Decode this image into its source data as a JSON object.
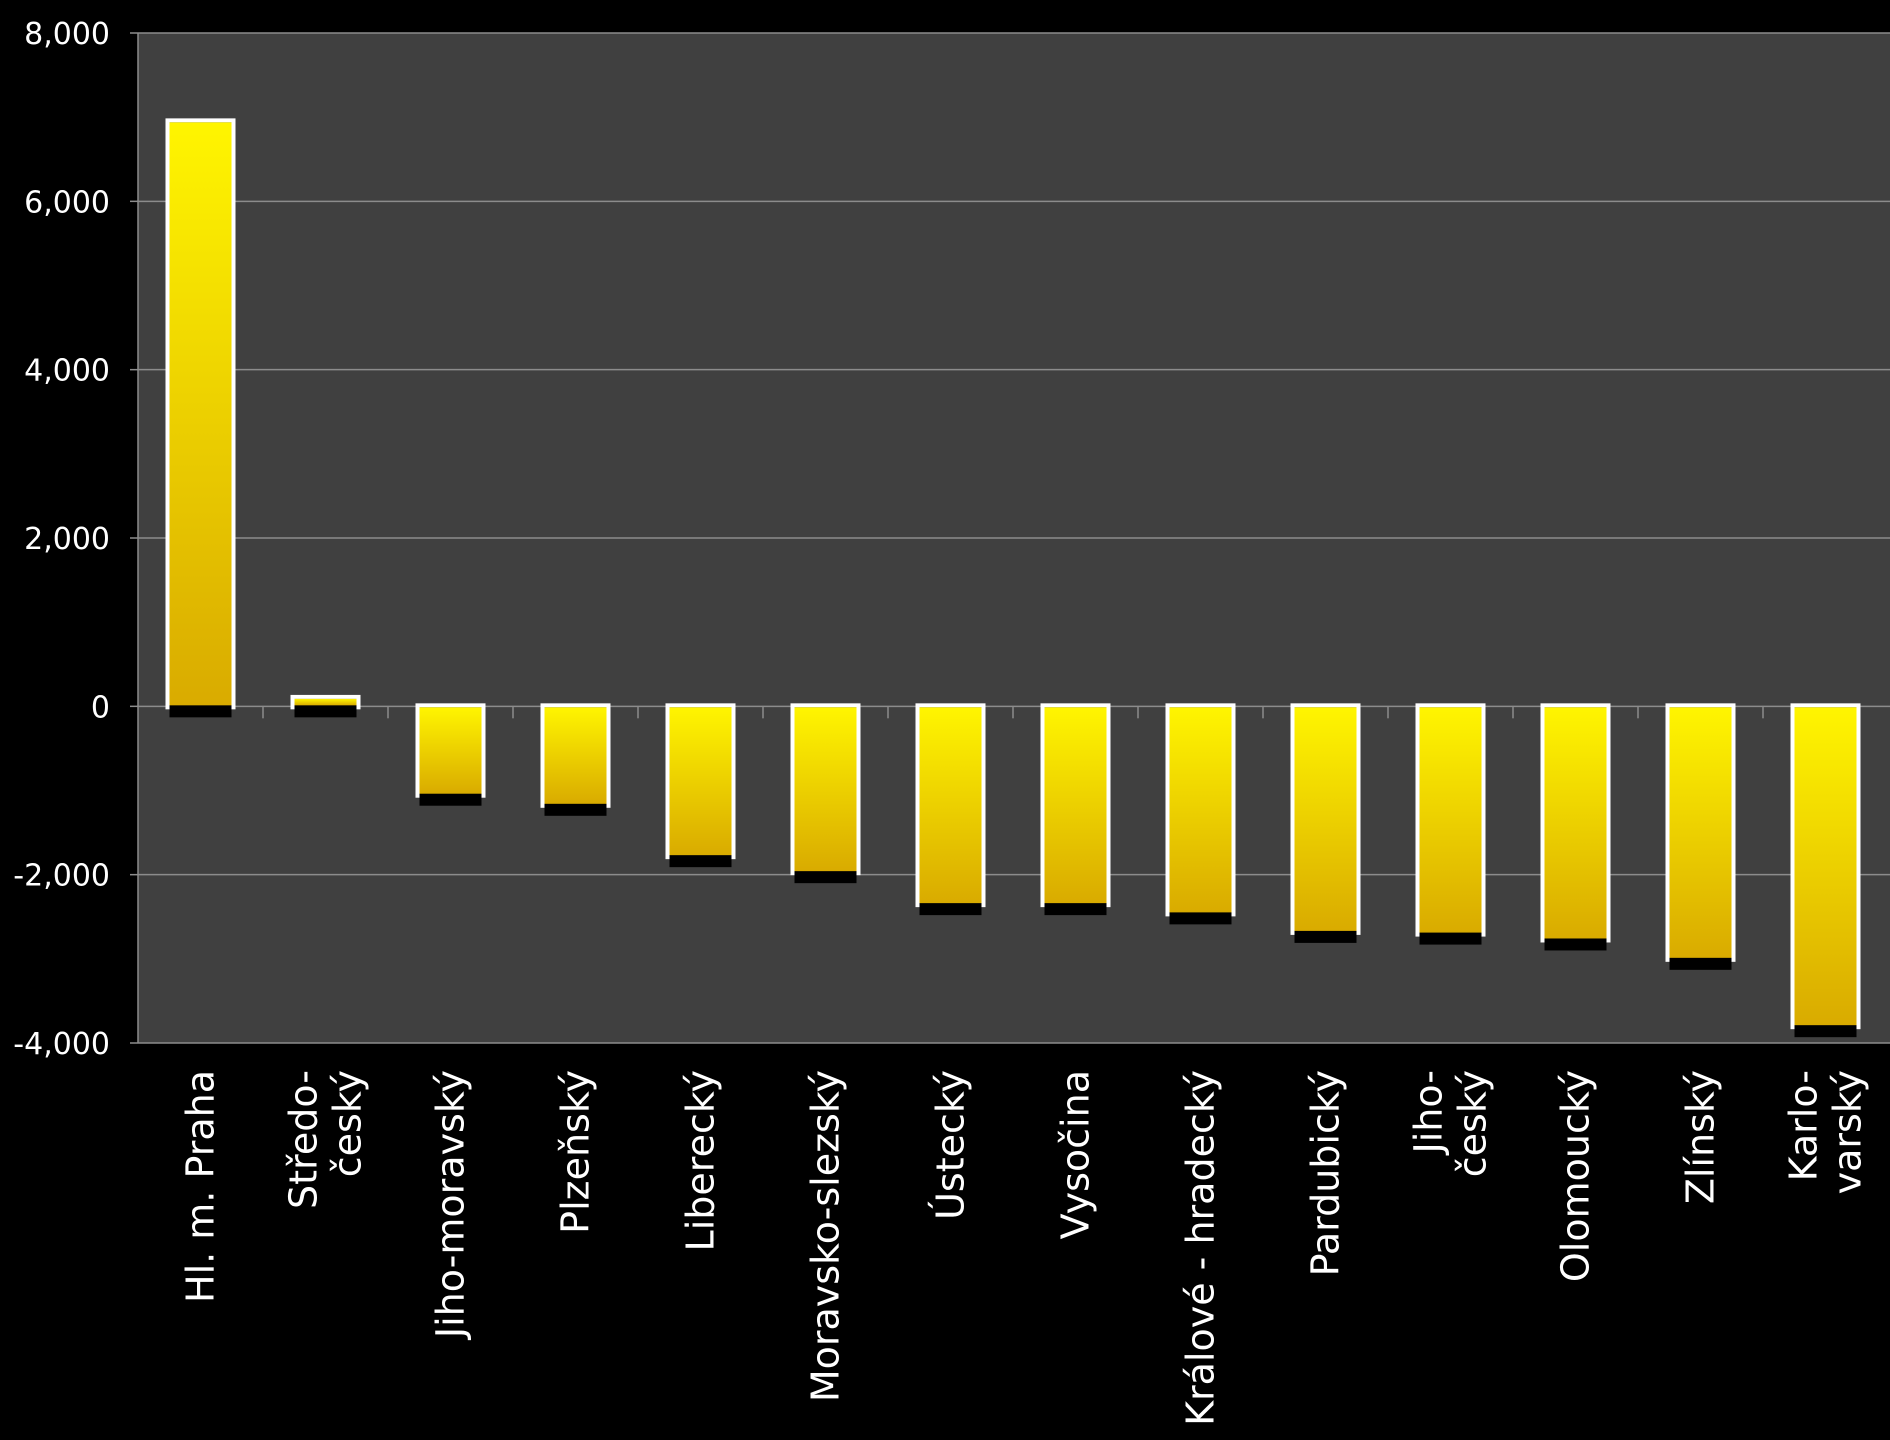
{
  "chart_data": {
    "type": "bar",
    "categories": [
      [
        "Hl. m. Praha"
      ],
      [
        "Středo-",
        "český"
      ],
      [
        "Jiho-moravský"
      ],
      [
        "Plzeňský"
      ],
      [
        "Liberecký"
      ],
      [
        "Moravsko-slezský"
      ],
      [
        "Ústecký"
      ],
      [
        "Vysočina"
      ],
      [
        "Králové - hradecký"
      ],
      [
        "Pardubický"
      ],
      [
        "Jiho-",
        "český"
      ],
      [
        "Olomoucký"
      ],
      [
        "Zlínský"
      ],
      [
        "Karlo-",
        "varský"
      ]
    ],
    "values": [
      6950,
      100,
      -1050,
      -1170,
      -1780,
      -1970,
      -2350,
      -2350,
      -2460,
      -2680,
      -2700,
      -2770,
      -3000,
      -3800
    ],
    "yticks": [
      "8,000",
      "6,000",
      "4,000",
      "2,000",
      "0",
      "-2,000",
      "-4,000"
    ],
    "ylim": [
      -4000,
      8000
    ],
    "grid": true,
    "title": "",
    "xlabel": "",
    "ylabel": "",
    "colors": {
      "background": "#000000",
      "plot_area": "#404040",
      "gridline": "#8c8c8c",
      "bar_light": "#fff200",
      "bar_dark": "#d4a800",
      "bar_outline": "#ffffff"
    }
  }
}
